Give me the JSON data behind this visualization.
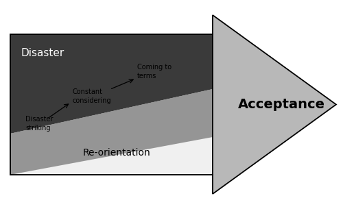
{
  "background_color": "#ffffff",
  "arrow_color": "#b8b8b8",
  "dark_color": "#3a3a3a",
  "mid_color": "#959595",
  "light_color": "#f0f0f0",
  "disaster_label": "Disaster",
  "reorientation_label": "Re-orientation",
  "acceptance_label": "Acceptance",
  "step1_label": "Disaster\nstriking",
  "step2_label": "Constant\nconsidering",
  "step3_label": "Coming to\nterms",
  "border_color": "#000000",
  "text_color": "#000000",
  "white_text_color": "#ffffff"
}
